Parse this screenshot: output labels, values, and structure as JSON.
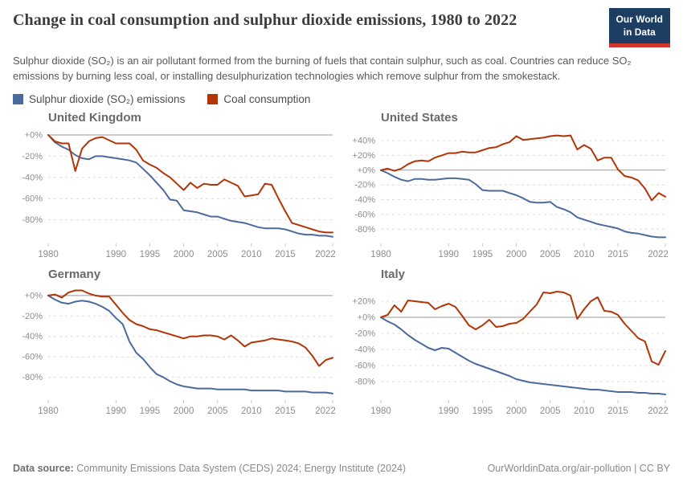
{
  "header": {
    "title": "Change in coal consumption and sulphur dioxide emissions, 1980 to 2022",
    "subtitle": "Sulphur dioxide (SO₂) is an air pollutant formed from the burning of fuels that contain sulphur, such as coal. Countries can reduce SO₂ emissions by burning less coal, or installing desulphurization technologies which remove sulphur from the smokestack.",
    "logo": {
      "line1": "Our World",
      "line2": "in Data"
    }
  },
  "legend": [
    {
      "label": "Sulphur dioxide (SO₂) emissions",
      "color": "#4c6a9c"
    },
    {
      "label": "Coal consumption",
      "color": "#b13507"
    }
  ],
  "footer": {
    "source_label": "Data source:",
    "source_text": " Community Emissions Data System (CEDS) 2024; Energy Institute (2024)",
    "link": "OurWorldinData.org/air-pollution | CC BY"
  },
  "colors": {
    "so2": "#4c6a9c",
    "coal": "#b13507",
    "zero_line": "#9a9a9a",
    "gridline": "#dcdcdc",
    "axis_text": "#8d8d8d"
  },
  "chart_data": {
    "type": "line",
    "unit": "%",
    "note": "Percentage change relative to 1980; small multiples per country",
    "years": [
      1980,
      1981,
      1982,
      1983,
      1984,
      1985,
      1986,
      1987,
      1988,
      1989,
      1990,
      1991,
      1992,
      1993,
      1994,
      1995,
      1996,
      1997,
      1998,
      1999,
      2000,
      2001,
      2002,
      2003,
      2004,
      2005,
      2006,
      2007,
      2008,
      2009,
      2010,
      2011,
      2012,
      2013,
      2014,
      2015,
      2016,
      2017,
      2018,
      2019,
      2020,
      2021,
      2022
    ],
    "x_ticks": [
      1980,
      1990,
      1995,
      2000,
      2005,
      2010,
      2015,
      2022
    ],
    "panels": [
      {
        "title": "United Kingdom",
        "ylim": [
          -100,
          3
        ],
        "y_ticks": [
          0,
          -20,
          -40,
          -60,
          -80
        ],
        "series": [
          {
            "key": "so2",
            "name": "Sulphur dioxide (SO₂) emissions",
            "color": "#4c6a9c",
            "values": [
              0,
              -7,
              -11,
              -14,
              -19,
              -22,
              -23,
              -20,
              -20,
              -21,
              -22,
              -23,
              -24,
              -26,
              -32,
              -38,
              -45,
              -52,
              -61,
              -62,
              -71,
              -72,
              -73,
              -75,
              -77,
              -77,
              -79,
              -81,
              -82,
              -83,
              -85,
              -87,
              -88,
              -88,
              -88,
              -89,
              -91,
              -93,
              -94,
              -94,
              -95,
              -95,
              -96
            ]
          },
          {
            "key": "coal",
            "name": "Coal consumption",
            "color": "#b13507",
            "values": [
              0,
              -6,
              -8,
              -8,
              -34,
              -13,
              -6,
              -3,
              -2,
              -5,
              -8,
              -8,
              -8,
              -14,
              -24,
              -28,
              -31,
              -36,
              -40,
              -46,
              -52,
              -45,
              -50,
              -46,
              -47,
              -47,
              -42,
              -45,
              -48,
              -58,
              -57,
              -56,
              -46,
              -47,
              -60,
              -72,
              -83,
              -85,
              -87,
              -89,
              -91,
              -92,
              -92
            ]
          }
        ]
      },
      {
        "title": "United States",
        "ylim": [
          -96,
          52
        ],
        "y_ticks": [
          40,
          20,
          0,
          -20,
          -40,
          -60,
          -80
        ],
        "series": [
          {
            "key": "so2",
            "name": "Sulphur dioxide (SO₂) emissions",
            "color": "#4c6a9c",
            "values": [
              0,
              -4,
              -9,
              -13,
              -15,
              -12,
              -12,
              -13,
              -13,
              -12,
              -11,
              -11,
              -12,
              -13,
              -19,
              -27,
              -28,
              -28,
              -28,
              -31,
              -34,
              -38,
              -43,
              -44,
              -44,
              -43,
              -50,
              -53,
              -57,
              -64,
              -67,
              -70,
              -73,
              -75,
              -77,
              -79,
              -83,
              -85,
              -86,
              -88,
              -90,
              -91,
              -91
            ]
          },
          {
            "key": "coal",
            "name": "Coal consumption",
            "color": "#b13507",
            "values": [
              0,
              2,
              -1,
              2,
              8,
              12,
              13,
              12,
              17,
              20,
              23,
              23,
              25,
              24,
              24,
              27,
              30,
              31,
              35,
              38,
              46,
              41,
              42,
              43,
              44,
              46,
              47,
              46,
              47,
              28,
              34,
              29,
              13,
              17,
              17,
              1,
              -8,
              -10,
              -14,
              -25,
              -41,
              -31,
              -36
            ]
          }
        ]
      },
      {
        "title": "Germany",
        "ylim": [
          -100,
          7
        ],
        "y_ticks": [
          0,
          -20,
          -40,
          -60,
          -80
        ],
        "series": [
          {
            "key": "so2",
            "name": "Sulphur dioxide (SO₂) emissions",
            "color": "#4c6a9c",
            "values": [
              0,
              -4,
              -7,
              -8,
              -6,
              -5,
              -6,
              -8,
              -11,
              -15,
              -22,
              -28,
              -45,
              -56,
              -62,
              -70,
              -77,
              -80,
              -84,
              -87,
              -89,
              -90,
              -91,
              -91,
              -91,
              -92,
              -92,
              -92,
              -92,
              -92,
              -93,
              -93,
              -93,
              -93,
              -93,
              -94,
              -94,
              -94,
              -94,
              -95,
              -95,
              -95,
              -96
            ]
          },
          {
            "key": "coal",
            "name": "Coal consumption",
            "color": "#b13507",
            "values": [
              0,
              1,
              -2,
              3,
              5,
              5,
              2,
              0,
              -1,
              -1,
              -9,
              -17,
              -24,
              -28,
              -30,
              -33,
              -34,
              -36,
              -38,
              -40,
              -42,
              -40,
              -40,
              -39,
              -39,
              -40,
              -43,
              -39,
              -44,
              -50,
              -46,
              -45,
              -44,
              -42,
              -43,
              -44,
              -45,
              -47,
              -51,
              -59,
              -69,
              -63,
              -61
            ]
          }
        ]
      },
      {
        "title": "Italy",
        "ylim": [
          -100,
          36
        ],
        "y_ticks": [
          20,
          0,
          -20,
          -40,
          -60,
          -80
        ],
        "series": [
          {
            "key": "so2",
            "name": "Sulphur dioxide (SO₂) emissions",
            "color": "#4c6a9c",
            "values": [
              0,
              -5,
              -9,
              -15,
              -22,
              -28,
              -33,
              -38,
              -41,
              -38,
              -39,
              -44,
              -49,
              -54,
              -58,
              -61,
              -64,
              -67,
              -70,
              -73,
              -77,
              -79,
              -81,
              -82,
              -83,
              -84,
              -85,
              -86,
              -87,
              -88,
              -89,
              -90,
              -90,
              -91,
              -92,
              -93,
              -93,
              -93,
              -94,
              -94,
              -95,
              -95,
              -96
            ]
          },
          {
            "key": "coal",
            "name": "Coal consumption",
            "color": "#b13507",
            "values": [
              0,
              3,
              15,
              7,
              21,
              20,
              19,
              18,
              10,
              14,
              17,
              13,
              2,
              -10,
              -15,
              -10,
              -3,
              -12,
              -11,
              -8,
              -7,
              -2,
              7,
              16,
              31,
              30,
              32,
              31,
              27,
              -2,
              10,
              20,
              25,
              8,
              7,
              3,
              -8,
              -17,
              -26,
              -30,
              -55,
              -59,
              -42
            ]
          }
        ]
      }
    ]
  }
}
